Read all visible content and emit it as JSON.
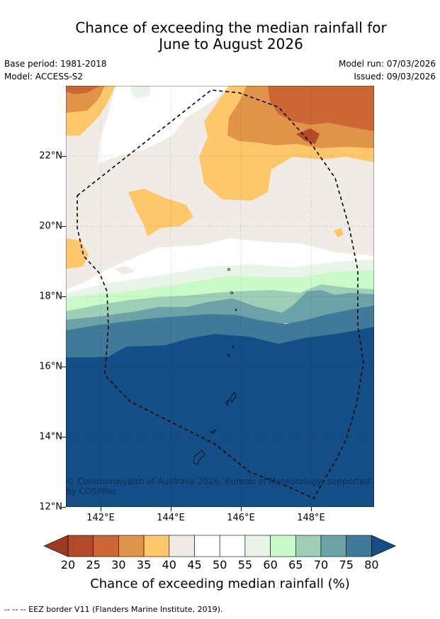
{
  "title_line1": "Chance of exceeding the median rainfall for",
  "title_line2": "June to August 2026",
  "base_period": "Base period: 1981-2018",
  "model": "Model: ACCESS-S2",
  "model_run": "Model run: 07/03/2026",
  "issued": "Issued: 09/03/2026",
  "y_ticks": [
    "22°N",
    "20°N",
    "18°N",
    "16°N",
    "14°N",
    "12°N"
  ],
  "x_ticks": [
    "142°E",
    "144°E",
    "146°E",
    "148°E"
  ],
  "copyright": "© Commonwealth of Australia 2026, Bureau of Meteorology, supported by COSPPac",
  "colorbar": {
    "labels": [
      "20",
      "25",
      "30",
      "35",
      "40",
      "45",
      "50",
      "55",
      "60",
      "65",
      "70",
      "75",
      "80"
    ],
    "colors": [
      "#9c3a22",
      "#b34a28",
      "#cc6633",
      "#e09448",
      "#fec86a",
      "#f0ebe5",
      "#ffffff",
      "#ffffff",
      "#e9f5e8",
      "#c8fbc8",
      "#9ccfb6",
      "#6ba3a8",
      "#3f7a9b",
      "#134e86"
    ],
    "title": "Chance of exceeding median rainfall (%)"
  },
  "footer": "--  --  -- EEZ border V11 (Flanders Marine Institute, 2019)."
}
